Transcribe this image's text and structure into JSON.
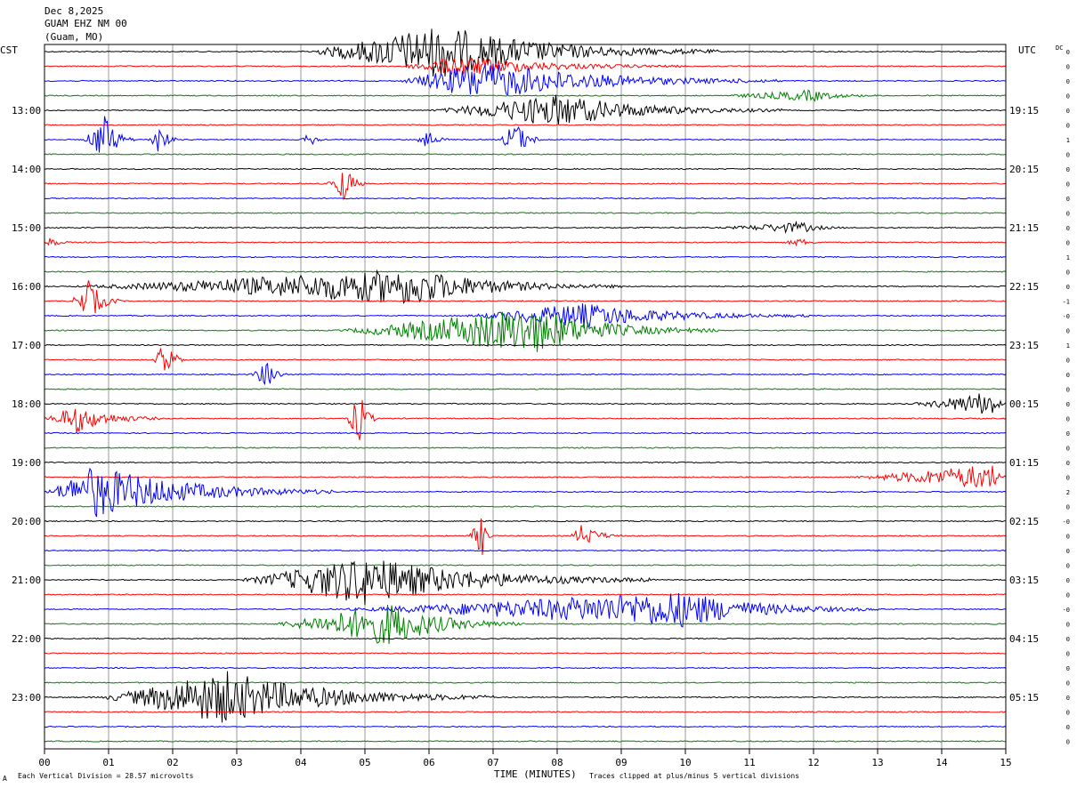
{
  "header": {
    "date": "Dec 8,2025",
    "station": "GUAM EHZ NM 00",
    "location": "(Guam, MO)"
  },
  "left_tz": "CST",
  "right_tz": "UTC",
  "dc_label": "DC",
  "footer": {
    "scale_note": "Each Vertical Division =   28.57 microvolts",
    "clip_note": "Traces clipped at plus/minus 5 vertical divisions",
    "corner_mark": "A"
  },
  "colors": {
    "trace_cycle": [
      "#000000",
      "#ff0000",
      "#0000ff",
      "#008000"
    ],
    "grid": "#808080",
    "frame": "#000000"
  },
  "chart_data": {
    "type": "line",
    "title": "GUAM EHZ NM 00",
    "xlabel": "TIME (MINUTES)",
    "ylabel": "",
    "x_ticks": [
      "00",
      "01",
      "02",
      "03",
      "04",
      "05",
      "06",
      "07",
      "08",
      "09",
      "10",
      "11",
      "12",
      "13",
      "14",
      "15"
    ],
    "xlim": [
      0,
      15
    ],
    "trace_count": 48,
    "minutes_per_trace": 15,
    "left_time_labels": [
      "13:00",
      "14:00",
      "15:00",
      "16:00",
      "17:00",
      "18:00",
      "19:00",
      "20:00",
      "21:00",
      "22:00",
      "23:00"
    ],
    "right_time_labels": [
      "19:15",
      "20:15",
      "21:15",
      "22:15",
      "23:15",
      "00:15",
      "01:15",
      "02:15",
      "03:15",
      "04:15",
      "05:15"
    ],
    "dc_offsets": [
      "0",
      "0",
      "0",
      "0",
      "0",
      "0",
      "1",
      "0",
      "0",
      "0",
      "0",
      "0",
      "0",
      "0",
      "1",
      "0",
      "0",
      "-1",
      "-0",
      "0",
      "1",
      "0",
      "0",
      "0",
      "0",
      "0",
      "0",
      "0",
      "0",
      "0",
      "2",
      "0",
      "-0",
      "0",
      "0",
      "0",
      "0",
      "0",
      "-0",
      "0",
      "0",
      "0",
      "0",
      "0",
      "0",
      "0",
      "0",
      "0"
    ],
    "events": [
      {
        "trace": 0,
        "start_min": 4.0,
        "end_min": 10.5,
        "peak_min": 6.2,
        "amplitude": 30
      },
      {
        "trace": 1,
        "start_min": 5.5,
        "end_min": 10.0,
        "peak_min": 6.5,
        "amplitude": 12
      },
      {
        "trace": 2,
        "start_min": 5.5,
        "end_min": 11.5,
        "peak_min": 6.8,
        "amplitude": 22
      },
      {
        "trace": 3,
        "start_min": 10.5,
        "end_min": 13.0,
        "peak_min": 12.0,
        "amplitude": 6
      },
      {
        "trace": 4,
        "start_min": 6.0,
        "end_min": 11.5,
        "peak_min": 8.0,
        "amplitude": 18
      },
      {
        "trace": 6,
        "start_min": 0.6,
        "end_min": 1.4,
        "peak_min": 0.95,
        "amplitude": 28
      },
      {
        "trace": 6,
        "start_min": 1.6,
        "end_min": 2.1,
        "peak_min": 1.8,
        "amplitude": 18
      },
      {
        "trace": 6,
        "start_min": 4.0,
        "end_min": 4.4,
        "peak_min": 4.15,
        "amplitude": 8
      },
      {
        "trace": 6,
        "start_min": 5.8,
        "end_min": 6.3,
        "peak_min": 5.95,
        "amplitude": 14
      },
      {
        "trace": 6,
        "start_min": 7.1,
        "end_min": 7.8,
        "peak_min": 7.35,
        "amplitude": 22
      },
      {
        "trace": 9,
        "start_min": 4.4,
        "end_min": 5.0,
        "peak_min": 4.7,
        "amplitude": 22
      },
      {
        "trace": 12,
        "start_min": 10.5,
        "end_min": 12.5,
        "peak_min": 11.8,
        "amplitude": 6
      },
      {
        "trace": 13,
        "start_min": 0.0,
        "end_min": 0.4,
        "peak_min": 0.1,
        "amplitude": 6
      },
      {
        "trace": 13,
        "start_min": 11.5,
        "end_min": 12.2,
        "peak_min": 11.8,
        "amplitude": 4
      },
      {
        "trace": 16,
        "start_min": 0.4,
        "end_min": 9.0,
        "peak_min": 5.8,
        "amplitude": 20
      },
      {
        "trace": 17,
        "start_min": 0.4,
        "end_min": 1.2,
        "peak_min": 0.7,
        "amplitude": 24
      },
      {
        "trace": 18,
        "start_min": 6.5,
        "end_min": 12.0,
        "peak_min": 8.4,
        "amplitude": 14
      },
      {
        "trace": 19,
        "start_min": 4.5,
        "end_min": 10.5,
        "peak_min": 7.6,
        "amplitude": 26
      },
      {
        "trace": 21,
        "start_min": 1.7,
        "end_min": 2.2,
        "peak_min": 1.9,
        "amplitude": 26
      },
      {
        "trace": 22,
        "start_min": 3.2,
        "end_min": 3.8,
        "peak_min": 3.5,
        "amplitude": 16
      },
      {
        "trace": 24,
        "start_min": 13.5,
        "end_min": 15.0,
        "peak_min": 14.8,
        "amplitude": 14
      },
      {
        "trace": 25,
        "start_min": 0.0,
        "end_min": 1.8,
        "peak_min": 0.5,
        "amplitude": 16
      },
      {
        "trace": 25,
        "start_min": 4.7,
        "end_min": 5.2,
        "peak_min": 4.92,
        "amplitude": 30
      },
      {
        "trace": 29,
        "start_min": 12.5,
        "end_min": 15.0,
        "peak_min": 14.8,
        "amplitude": 14
      },
      {
        "trace": 30,
        "start_min": 0.0,
        "end_min": 4.5,
        "peak_min": 0.8,
        "amplitude": 30
      },
      {
        "trace": 33,
        "start_min": 6.6,
        "end_min": 7.0,
        "peak_min": 6.85,
        "amplitude": 24
      },
      {
        "trace": 33,
        "start_min": 8.2,
        "end_min": 9.0,
        "peak_min": 8.4,
        "amplitude": 14
      },
      {
        "trace": 36,
        "start_min": 3.0,
        "end_min": 9.5,
        "peak_min": 5.0,
        "amplitude": 28
      },
      {
        "trace": 38,
        "start_min": 4.5,
        "end_min": 13.0,
        "peak_min": 10.0,
        "amplitude": 20
      },
      {
        "trace": 39,
        "start_min": 3.5,
        "end_min": 7.5,
        "peak_min": 5.4,
        "amplitude": 24
      },
      {
        "trace": 44,
        "start_min": 0.8,
        "end_min": 7.0,
        "peak_min": 2.8,
        "amplitude": 30
      }
    ]
  }
}
